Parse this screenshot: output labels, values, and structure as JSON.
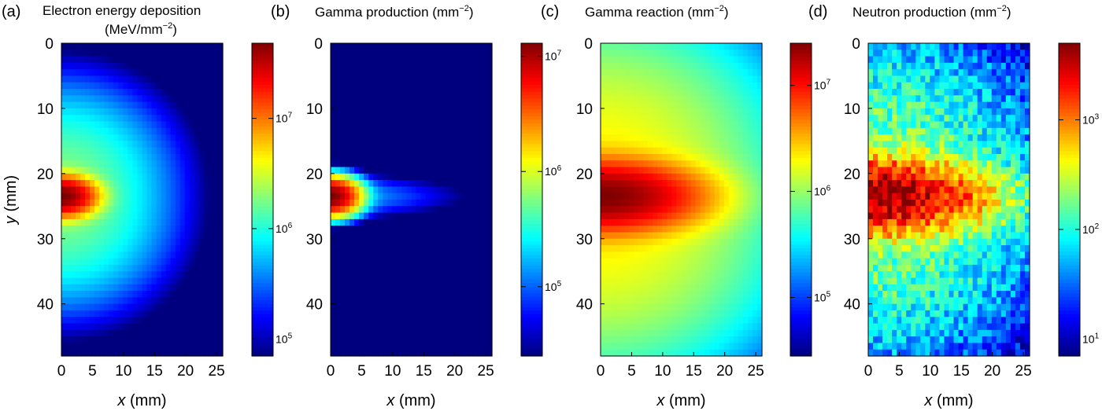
{
  "colormap": [
    "#00007f",
    "#0000ff",
    "#007fff",
    "#00ffff",
    "#7fff7f",
    "#ffff00",
    "#ff7f00",
    "#ff0000",
    "#7f0000"
  ],
  "chart_data": [
    {
      "type": "heatmap",
      "panel_label": "(a)",
      "title": "Electron energy deposition",
      "title_line2": "(MeV/mm",
      "title_unit_sup": "−2",
      "title_line2_end": ")",
      "xlabel_var": "x",
      "xlabel_unit": " (mm)",
      "ylabel_var": "y",
      "ylabel_unit": " (mm)",
      "xlim": [
        0,
        26
      ],
      "ylim": [
        48,
        0
      ],
      "x_ticks": [
        0,
        5,
        10,
        15,
        20,
        25
      ],
      "y_ticks": [
        0,
        10,
        20,
        30,
        40
      ],
      "colorbar": {
        "scale": "log",
        "range": [
          70000,
          48000000
        ],
        "ticks": [
          {
            "base": "10",
            "exp": "5",
            "value": 100000
          },
          {
            "base": "10",
            "exp": "6",
            "value": 1000000
          },
          {
            "base": "10",
            "exp": "7",
            "value": 10000000
          }
        ]
      },
      "source": {
        "x": 0,
        "y": 23.5
      },
      "peak": 48000000,
      "field": {
        "sx": 13,
        "sy": 13,
        "amp": 1900000,
        "ex": 2.0,
        "ey": 2.2,
        "sx2": 4,
        "sy2": 2.2,
        "amp2": 48000000
      },
      "noise": 0
    },
    {
      "type": "heatmap",
      "panel_label": "(b)",
      "title": "Gamma production (mm",
      "title_unit_sup": "−2",
      "title_line2": "",
      "title_line2_end": ")",
      "xlabel_var": "x",
      "xlabel_unit": " (mm)",
      "ylabel_var": "",
      "ylabel_unit": "",
      "xlim": [
        0,
        26
      ],
      "ylim": [
        48,
        0
      ],
      "x_ticks": [
        0,
        5,
        10,
        15,
        20,
        25
      ],
      "y_ticks": [
        0,
        10,
        20,
        30,
        40
      ],
      "colorbar": {
        "scale": "log",
        "range": [
          25000,
          13000000
        ],
        "ticks": [
          {
            "base": "10",
            "exp": "5",
            "value": 100000
          },
          {
            "base": "10",
            "exp": "6",
            "value": 1000000
          },
          {
            "base": "10",
            "exp": "7",
            "value": 10000000
          }
        ]
      },
      "source": {
        "x": 0,
        "y": 23.5
      },
      "peak": 13000000,
      "field": {
        "sx": 14,
        "sy": 2.6,
        "amp": 180000,
        "ex": 1.6,
        "ey": 2.0,
        "sx2": 3.2,
        "sy2": 2.0,
        "amp2": 13000000
      },
      "noise": 0
    },
    {
      "type": "heatmap",
      "panel_label": "(c)",
      "title": "Gamma reaction (mm",
      "title_unit_sup": "−2",
      "title_line2": "",
      "title_line2_end": ")",
      "xlabel_var": "x",
      "xlabel_unit": " (mm)",
      "ylabel_var": "",
      "ylabel_unit": "",
      "xlim": [
        0,
        26
      ],
      "ylim": [
        48,
        0
      ],
      "x_ticks": [
        0,
        5,
        10,
        15,
        20,
        25
      ],
      "y_ticks": [
        0,
        10,
        20,
        30,
        40
      ],
      "colorbar": {
        "scale": "log",
        "range": [
          28000,
          25000000
        ],
        "ticks": [
          {
            "base": "10",
            "exp": "5",
            "value": 100000
          },
          {
            "base": "10",
            "exp": "6",
            "value": 1000000
          },
          {
            "base": "10",
            "exp": "7",
            "value": 10000000
          }
        ]
      },
      "source": {
        "x": 0,
        "y": 23.5
      },
      "peak": 25000000,
      "field": {
        "sx": 22,
        "sy": 22,
        "amp": 2200000,
        "ex": 2.0,
        "ey": 2.4,
        "sx2": 12,
        "sy2": 4.0,
        "amp2": 23000000
      },
      "noise": 0
    },
    {
      "type": "heatmap",
      "panel_label": "(d)",
      "title": "Neutron production (mm",
      "title_unit_sup": "−2",
      "title_line2": "",
      "title_line2_end": ")",
      "xlabel_var": "x",
      "xlabel_unit": " (mm)",
      "ylabel_var": "",
      "ylabel_unit": "",
      "xlim": [
        0,
        26
      ],
      "ylim": [
        48,
        0
      ],
      "x_ticks": [
        0,
        5,
        10,
        15,
        20,
        25
      ],
      "y_ticks": [
        0,
        10,
        20,
        30,
        40
      ],
      "colorbar": {
        "scale": "log",
        "range": [
          7,
          5000
        ],
        "ticks": [
          {
            "base": "10",
            "exp": "1",
            "value": 10
          },
          {
            "base": "10",
            "exp": "2",
            "value": 100
          },
          {
            "base": "10",
            "exp": "3",
            "value": 1000
          }
        ]
      },
      "source": {
        "x": 0,
        "y": 23.5
      },
      "peak": 5000,
      "field": {
        "sx": 22,
        "sy": 20,
        "amp": 200,
        "ex": 2.0,
        "ey": 2.2,
        "sx2": 13,
        "sy2": 4.0,
        "amp2": 4400
      },
      "noise": 0.22
    }
  ]
}
